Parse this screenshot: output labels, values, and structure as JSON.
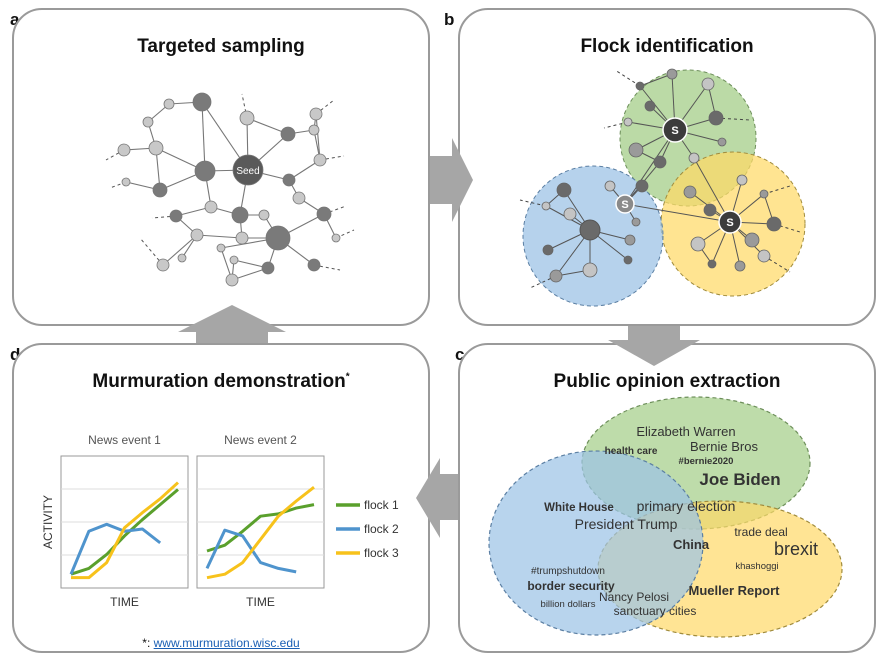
{
  "panels": {
    "a": {
      "label": "a",
      "title": "Targeted sampling",
      "seed": "Seed"
    },
    "b": {
      "label": "b",
      "title": "Flock identification",
      "s": "S"
    },
    "c": {
      "label": "c",
      "title": "Public opinion extraction",
      "words": {
        "elizabeth_warren": "Elizabeth Warren",
        "bernie_bros": "Bernie Bros",
        "health_care": "health care",
        "bernie2020": "#bernie2020",
        "joe_biden": "Joe Biden",
        "white_house": "White House",
        "primary_election": "primary election",
        "president_trump": "President Trump",
        "trade_deal": "trade deal",
        "china": "China",
        "brexit": "brexit",
        "trumpshutdown": "#trumpshutdown",
        "khashoggi": "khashoggi",
        "border_security": "border security",
        "mueller_report": "Mueller Report",
        "nancy_pelosi": "Nancy Pelosi",
        "billion_dollars": "billion dollars",
        "sanctuary_cities": "sanctuary cities"
      }
    },
    "d": {
      "label": "d",
      "title": "Murmuration demonstration",
      "title_mark": "*",
      "footnote_prefix": "*: ",
      "footnote_link": "www.murmuration.wisc.edu"
    }
  },
  "chart_data": [
    {
      "type": "line",
      "title": "News event 1",
      "xlabel": "TIME",
      "ylabel": "ACTIVITY",
      "series": [
        {
          "name": "flock 1",
          "color": "#5aa02c",
          "values": [
            0.05,
            0.1,
            0.22,
            0.38,
            0.52,
            0.65,
            0.78
          ]
        },
        {
          "name": "flock 2",
          "color": "#4f94cd",
          "values": [
            0.05,
            0.42,
            0.48,
            0.42,
            0.44,
            0.32,
            null
          ]
        },
        {
          "name": "flock 3",
          "color": "#f7c21b",
          "values": [
            0.02,
            0.02,
            0.15,
            0.45,
            0.58,
            0.7,
            0.84
          ]
        }
      ]
    },
    {
      "type": "line",
      "title": "News event 2",
      "xlabel": "TIME",
      "ylabel": "ACTIVITY",
      "series": [
        {
          "name": "flock 1",
          "color": "#5aa02c",
          "values": [
            0.25,
            0.3,
            0.42,
            0.55,
            0.57,
            0.62,
            0.65
          ]
        },
        {
          "name": "flock 2",
          "color": "#4f94cd",
          "values": [
            0.1,
            0.43,
            0.38,
            0.15,
            0.1,
            0.07,
            null
          ]
        },
        {
          "name": "flock 3",
          "color": "#f7c21b",
          "values": [
            0.02,
            0.05,
            0.15,
            0.35,
            0.55,
            0.68,
            0.8
          ]
        }
      ]
    }
  ]
}
